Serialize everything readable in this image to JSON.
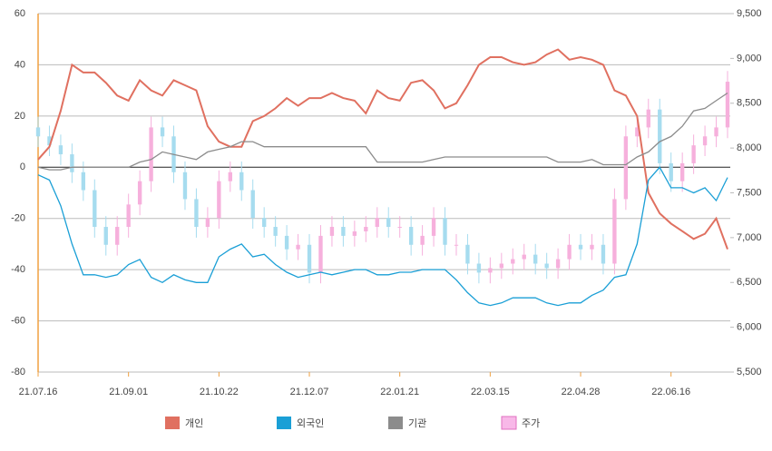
{
  "chart_data": {
    "type": "combo",
    "categories": [
      "21.07.16",
      null,
      null,
      null,
      null,
      null,
      null,
      null,
      "21.09.01",
      null,
      null,
      null,
      null,
      null,
      null,
      null,
      "21.10.22",
      null,
      null,
      null,
      null,
      null,
      null,
      null,
      "21.12.07",
      null,
      null,
      null,
      null,
      null,
      null,
      null,
      "22.01.21",
      null,
      null,
      null,
      null,
      null,
      null,
      null,
      "22.03.15",
      null,
      null,
      null,
      null,
      null,
      null,
      null,
      "22.04.28",
      null,
      null,
      null,
      null,
      null,
      null,
      null,
      "22.06.16",
      null,
      null,
      null,
      null,
      null
    ],
    "ylim": [
      -80,
      60
    ],
    "yticks": [
      -80,
      -60,
      -40,
      -20,
      0,
      20,
      40,
      60
    ],
    "y2lim": [
      5500,
      9500
    ],
    "y2ticks": [
      {
        "value": 5500,
        "label": "5,500"
      },
      {
        "value": 6000,
        "label": "6,000"
      },
      {
        "value": 6500,
        "label": "6,500"
      },
      {
        "value": 7000,
        "label": "7,000"
      },
      {
        "value": 7500,
        "label": "7,500"
      },
      {
        "value": 8000,
        "label": "8,000"
      },
      {
        "value": 8500,
        "label": "8,500"
      },
      {
        "value": 9000,
        "label": "9,000"
      },
      {
        "value": 9500,
        "label": "9,500"
      }
    ],
    "grid": true,
    "series": [
      {
        "name": "개인",
        "type": "line",
        "color": "#e07060",
        "values": [
          3,
          8,
          22,
          40,
          37,
          37,
          33,
          28,
          26,
          34,
          30,
          28,
          34,
          32,
          30,
          16,
          10,
          8,
          8,
          18,
          20,
          23,
          27,
          24,
          27,
          27,
          29,
          27,
          26,
          21,
          30,
          27,
          26,
          33,
          34,
          30,
          23,
          25,
          32,
          40,
          43,
          43,
          41,
          40,
          41,
          44,
          46,
          42,
          43,
          42,
          40,
          30,
          28,
          20,
          -10,
          -18,
          -22,
          -25,
          -28,
          -26,
          -20,
          -32
        ]
      },
      {
        "name": "외국인",
        "type": "line",
        "color": "#1a9fd6",
        "values": [
          -3,
          -5,
          -15,
          -30,
          -42,
          -42,
          -43,
          -42,
          -38,
          -36,
          -43,
          -45,
          -42,
          -44,
          -45,
          -45,
          -35,
          -32,
          -30,
          -35,
          -34,
          -38,
          -41,
          -43,
          -42,
          -41,
          -42,
          -41,
          -40,
          -40,
          -42,
          -42,
          -41,
          -41,
          -40,
          -40,
          -40,
          -44,
          -49,
          -53,
          -54,
          -53,
          -51,
          -51,
          -51,
          -53,
          -54,
          -53,
          -53,
          -50,
          -48,
          -43,
          -42,
          -30,
          -5,
          0,
          -8,
          -8,
          -10,
          -8,
          -13,
          -4
        ]
      },
      {
        "name": "기관",
        "type": "line",
        "color": "#8c8c8c",
        "values": [
          0,
          -1,
          -1,
          0,
          0,
          0,
          0,
          0,
          0,
          2,
          3,
          6,
          5,
          4,
          3,
          6,
          7,
          8,
          10,
          10,
          8,
          8,
          8,
          8,
          8,
          8,
          8,
          8,
          8,
          8,
          2,
          2,
          2,
          2,
          2,
          3,
          4,
          4,
          4,
          4,
          4,
          4,
          4,
          4,
          4,
          4,
          2,
          2,
          2,
          3,
          1,
          1,
          1,
          4,
          6,
          10,
          12,
          16,
          22,
          23,
          26,
          29
        ]
      },
      {
        "name": "주가",
        "type": "candlestick",
        "axis": "y2",
        "color": "#f8b8e8",
        "up_color": "#f6b0dc",
        "down_color": "#a6dcef",
        "open": [
          8230,
          8130,
          8030,
          7930,
          7730,
          7530,
          7120,
          6920,
          7120,
          7370,
          7630,
          8230,
          8130,
          7730,
          7430,
          7120,
          7220,
          7630,
          7730,
          7530,
          7220,
          7120,
          7020,
          6870,
          6920,
          6610,
          7020,
          7120,
          7020,
          7070,
          7120,
          7220,
          7120,
          7120,
          6920,
          7020,
          7220,
          6920,
          6920,
          6710,
          6610,
          6660,
          6710,
          6760,
          6810,
          6710,
          6660,
          6760,
          6920,
          6870,
          6920,
          6710,
          7430,
          8130,
          8230,
          8430,
          7830,
          7630,
          7830,
          8030,
          8130,
          8230
        ],
        "high": [
          8350,
          8250,
          8150,
          8050,
          7850,
          7650,
          7240,
          7240,
          7490,
          7750,
          8350,
          8350,
          8250,
          7850,
          7550,
          7340,
          7750,
          7850,
          7850,
          7650,
          7340,
          7240,
          7140,
          7040,
          7040,
          7140,
          7240,
          7240,
          7190,
          7240,
          7340,
          7340,
          7240,
          7240,
          7140,
          7340,
          7340,
          7040,
          7040,
          6830,
          6780,
          6830,
          6880,
          6930,
          6930,
          6830,
          6880,
          7040,
          7040,
          7040,
          7040,
          7550,
          8250,
          8350,
          8550,
          8550,
          7950,
          7950,
          8150,
          8250,
          8350,
          8860
        ],
        "low": [
          8010,
          7910,
          7810,
          7610,
          7410,
          7000,
          6800,
          6800,
          7000,
          7250,
          7510,
          8010,
          7610,
          7310,
          7000,
          7000,
          7100,
          7510,
          7410,
          7100,
          7000,
          6900,
          6750,
          6750,
          6490,
          6490,
          6900,
          6900,
          6900,
          6950,
          7000,
          7000,
          7000,
          6800,
          6800,
          6900,
          6800,
          6800,
          6590,
          6490,
          6490,
          6540,
          6590,
          6640,
          6590,
          6540,
          6540,
          6640,
          6750,
          6750,
          6590,
          6590,
          7310,
          8010,
          8110,
          7710,
          7510,
          7510,
          7710,
          7910,
          8010,
          8110
        ],
        "close": [
          8130,
          8030,
          7930,
          7730,
          7530,
          7120,
          6920,
          7120,
          7370,
          7630,
          8230,
          8130,
          7730,
          7430,
          7120,
          7220,
          7630,
          7730,
          7530,
          7220,
          7120,
          7020,
          6870,
          6920,
          6610,
          7020,
          7120,
          7020,
          7070,
          7120,
          7220,
          7120,
          7120,
          6920,
          7020,
          7220,
          6920,
          6920,
          6710,
          6610,
          6660,
          6710,
          6760,
          6810,
          6710,
          6660,
          6760,
          6920,
          6870,
          6920,
          6710,
          7430,
          8130,
          8230,
          8430,
          7830,
          7630,
          7830,
          8030,
          8130,
          8230,
          8740
        ]
      }
    ]
  }
}
